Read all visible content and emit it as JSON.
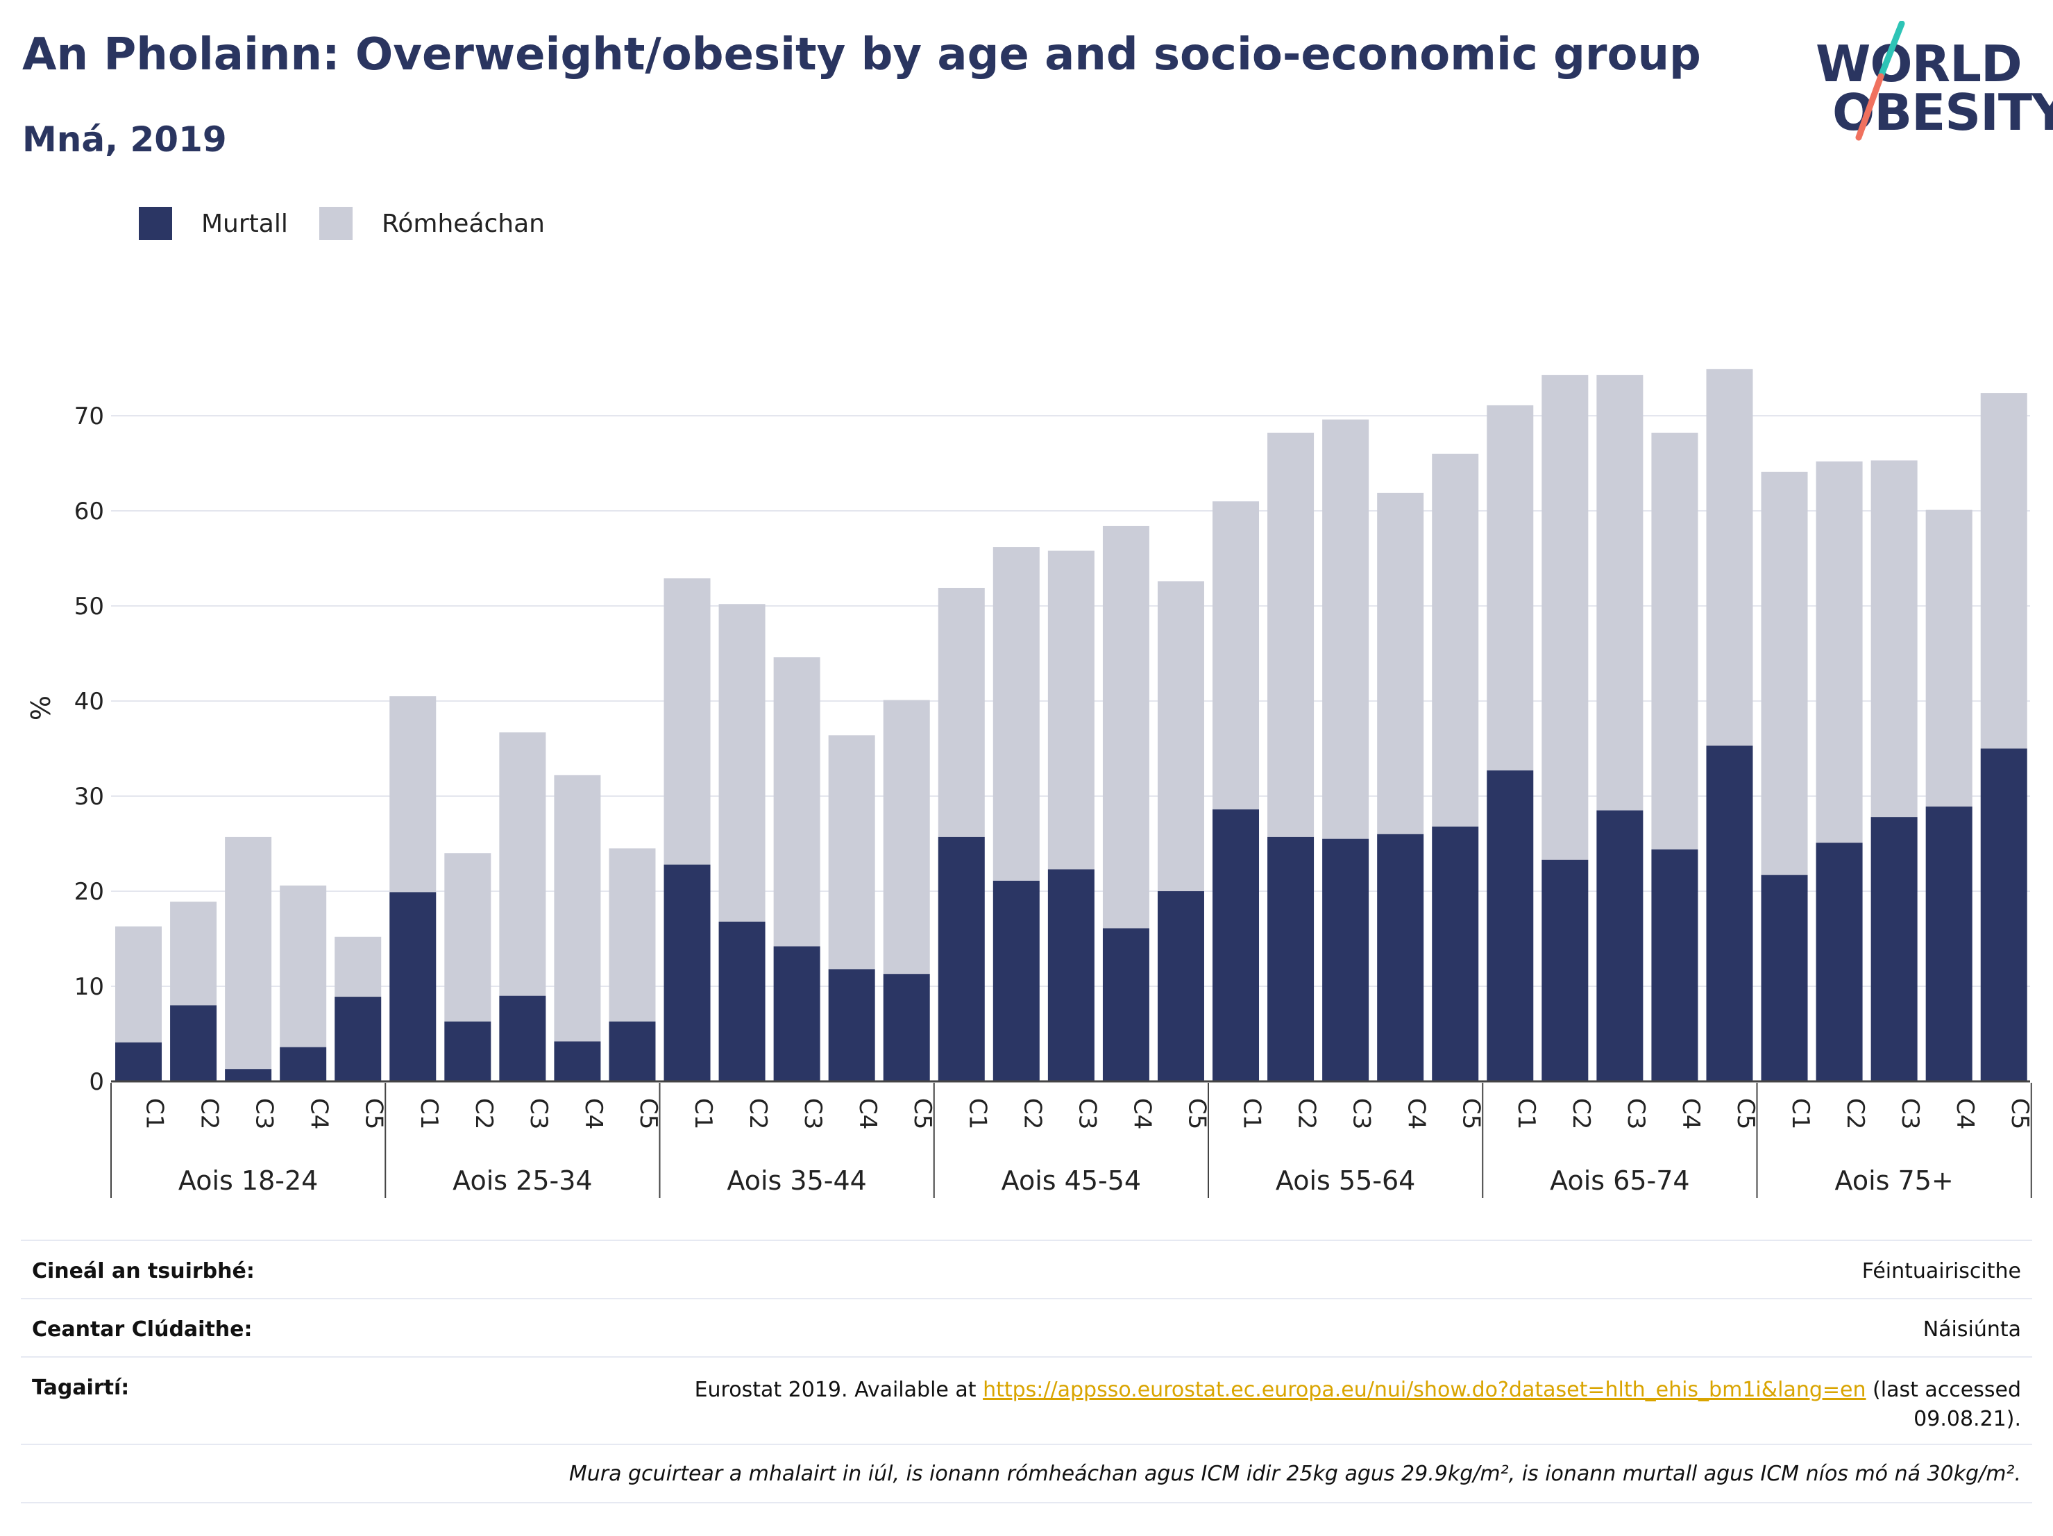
{
  "title": "An Pholainn: Overweight/obesity by age and socio-economic group",
  "subtitle": "Mná, 2019",
  "logo": {
    "line1": "WORLD",
    "line2": "OBESITY",
    "accent_teal": "#2ec4b6",
    "accent_coral": "#f0715e"
  },
  "colors": {
    "obese": "#2b3664",
    "overweight": "#cbcdd8",
    "grid": "#e4e6ee",
    "axis": "#444444"
  },
  "chart_data": {
    "type": "bar",
    "stacked": true,
    "ylabel": "%",
    "ylim": [
      0,
      80
    ],
    "yticks": [
      0,
      10,
      20,
      30,
      40,
      50,
      60,
      70
    ],
    "legend": [
      "Murtall",
      "Rómheáchan"
    ],
    "groups": [
      {
        "label": "Aois 18-24",
        "categories": [
          "C1",
          "C2",
          "C3",
          "C4",
          "C5"
        ],
        "obese": [
          4.1,
          8.0,
          1.3,
          3.6,
          8.9
        ],
        "total": [
          16.3,
          18.9,
          25.7,
          20.6,
          15.2
        ]
      },
      {
        "label": "Aois 25-34",
        "categories": [
          "C1",
          "C2",
          "C3",
          "C4",
          "C5"
        ],
        "obese": [
          19.9,
          6.3,
          9.0,
          4.2,
          6.3
        ],
        "total": [
          40.5,
          24.0,
          36.7,
          32.2,
          24.5
        ]
      },
      {
        "label": "Aois 35-44",
        "categories": [
          "C1",
          "C2",
          "C3",
          "C4",
          "C5"
        ],
        "obese": [
          22.8,
          16.8,
          14.2,
          11.8,
          11.3
        ],
        "total": [
          52.9,
          50.2,
          44.6,
          36.4,
          40.1
        ]
      },
      {
        "label": "Aois 45-54",
        "categories": [
          "C1",
          "C2",
          "C3",
          "C4",
          "C5"
        ],
        "obese": [
          25.7,
          21.1,
          22.3,
          16.1,
          20.0
        ],
        "total": [
          51.9,
          56.2,
          55.8,
          58.4,
          52.6
        ]
      },
      {
        "label": "Aois 55-64",
        "categories": [
          "C1",
          "C2",
          "C3",
          "C4",
          "C5"
        ],
        "obese": [
          28.6,
          25.7,
          25.5,
          26.0,
          26.8
        ],
        "total": [
          61.0,
          68.2,
          69.6,
          61.9,
          66.0
        ]
      },
      {
        "label": "Aois 65-74",
        "categories": [
          "C1",
          "C2",
          "C3",
          "C4",
          "C5"
        ],
        "obese": [
          32.7,
          23.3,
          28.5,
          24.4,
          35.3
        ],
        "total": [
          71.1,
          74.3,
          74.3,
          68.2,
          74.9
        ]
      },
      {
        "label": "Aois 75+",
        "categories": [
          "C1",
          "C2",
          "C3",
          "C4",
          "C5"
        ],
        "obese": [
          21.7,
          25.1,
          27.8,
          28.9,
          35.0
        ],
        "total": [
          64.1,
          65.2,
          65.3,
          60.1,
          72.4
        ]
      }
    ]
  },
  "footer": {
    "survey_label": "Cineál an tsuirbhé:",
    "survey_value": "Féintuairiscithe",
    "area_label": "Ceantar Clúdaithe:",
    "area_value": "Náisiúnta",
    "refs_label": "Tagairtí:",
    "refs_prefix": "Eurostat 2019. Available at ",
    "refs_link": "https://appsso.eurostat.ec.europa.eu/nui/show.do?dataset=hlth_ehis_bm1i&lang=en",
    "refs_suffix": " (last accessed",
    "refs_suffix2": "09.08.21).",
    "note": "Mura gcuirtear a mhalairt in iúl, is ionann rómheáchan agus ICM idir 25kg agus 29.9kg/m², is ionann murtall agus ICM níos mó ná 30kg/m²."
  }
}
